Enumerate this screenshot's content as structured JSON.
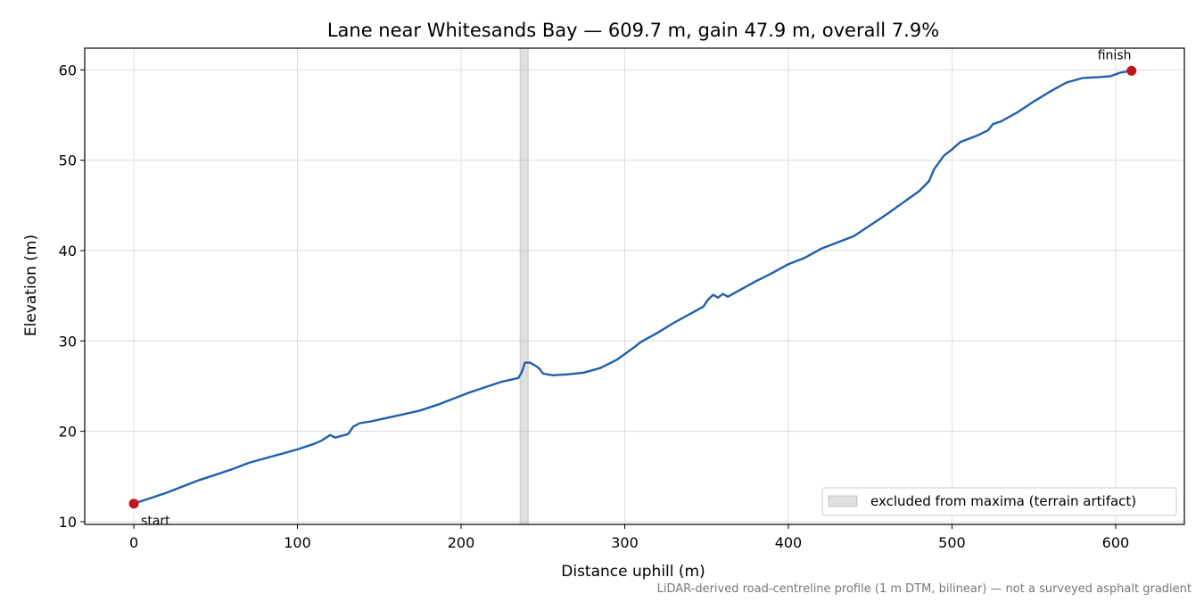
{
  "chart_data": {
    "type": "line",
    "title": "Lane near Whitesands Bay — 609.7 m, gain 47.9 m, overall 7.9%",
    "xlabel": "Distance uphill (m)",
    "ylabel": "Elevation (m)",
    "xlim": [
      -30,
      642
    ],
    "ylim": [
      9.7,
      62.4
    ],
    "xticks": [
      0,
      100,
      200,
      300,
      400,
      500,
      600
    ],
    "yticks": [
      10,
      20,
      30,
      40,
      50,
      60
    ],
    "grid": true,
    "line_color": "#1f5fad",
    "series": [
      {
        "values_xy": [
          [
            0,
            12.0
          ],
          [
            10,
            12.6
          ],
          [
            20,
            13.2
          ],
          [
            30,
            13.9
          ],
          [
            40,
            14.6
          ],
          [
            50,
            15.2
          ],
          [
            60,
            15.8
          ],
          [
            70,
            16.5
          ],
          [
            80,
            17.0
          ],
          [
            90,
            17.5
          ],
          [
            100,
            18.0
          ],
          [
            110,
            18.6
          ],
          [
            115,
            19.0
          ],
          [
            120,
            19.6
          ],
          [
            123,
            19.3
          ],
          [
            127,
            19.5
          ],
          [
            131,
            19.7
          ],
          [
            134,
            20.5
          ],
          [
            138,
            20.9
          ],
          [
            145,
            21.1
          ],
          [
            155,
            21.5
          ],
          [
            165,
            21.9
          ],
          [
            175,
            22.3
          ],
          [
            185,
            22.9
          ],
          [
            195,
            23.6
          ],
          [
            205,
            24.3
          ],
          [
            215,
            24.9
          ],
          [
            225,
            25.5
          ],
          [
            230,
            25.7
          ],
          [
            235,
            25.9
          ],
          [
            237,
            26.5
          ],
          [
            239,
            27.6
          ],
          [
            242,
            27.6
          ],
          [
            246,
            27.2
          ],
          [
            248,
            26.9
          ],
          [
            250,
            26.4
          ],
          [
            256,
            26.2
          ],
          [
            265,
            26.3
          ],
          [
            275,
            26.5
          ],
          [
            285,
            27.0
          ],
          [
            295,
            27.9
          ],
          [
            305,
            29.2
          ],
          [
            310,
            29.9
          ],
          [
            320,
            30.9
          ],
          [
            330,
            32.0
          ],
          [
            340,
            33.0
          ],
          [
            348,
            33.8
          ],
          [
            351,
            34.6
          ],
          [
            354,
            35.1
          ],
          [
            357,
            34.8
          ],
          [
            360,
            35.2
          ],
          [
            363,
            34.9
          ],
          [
            370,
            35.6
          ],
          [
            380,
            36.6
          ],
          [
            390,
            37.5
          ],
          [
            395,
            38.0
          ],
          [
            400,
            38.5
          ],
          [
            410,
            39.2
          ],
          [
            420,
            40.2
          ],
          [
            430,
            40.9
          ],
          [
            440,
            41.6
          ],
          [
            450,
            42.8
          ],
          [
            460,
            44.0
          ],
          [
            470,
            45.3
          ],
          [
            480,
            46.6
          ],
          [
            486,
            47.7
          ],
          [
            489,
            49.0
          ],
          [
            495,
            50.5
          ],
          [
            500,
            51.2
          ],
          [
            505,
            52.0
          ],
          [
            515,
            52.7
          ],
          [
            522,
            53.3
          ],
          [
            525,
            54.0
          ],
          [
            530,
            54.3
          ],
          [
            535,
            54.8
          ],
          [
            540,
            55.3
          ],
          [
            550,
            56.5
          ],
          [
            560,
            57.6
          ],
          [
            570,
            58.6
          ],
          [
            580,
            59.1
          ],
          [
            590,
            59.2
          ],
          [
            597,
            59.3
          ],
          [
            603,
            59.7
          ],
          [
            609.7,
            59.9
          ]
        ]
      }
    ],
    "excluded_band": {
      "x0": 236,
      "x1": 241,
      "color": "#999999"
    },
    "endpoints": [
      {
        "label": "start",
        "x": 0,
        "y": 12.0,
        "color": "#c0161b"
      },
      {
        "label": "finish",
        "x": 609.7,
        "y": 59.9,
        "color": "#c0161b"
      }
    ],
    "legend": {
      "position": "lower-right",
      "label": "excluded from maxima (terrain artifact)"
    },
    "footnote": "LiDAR-derived road-centreline profile (1 m DTM, bilinear) — not a surveyed asphalt gradient"
  }
}
